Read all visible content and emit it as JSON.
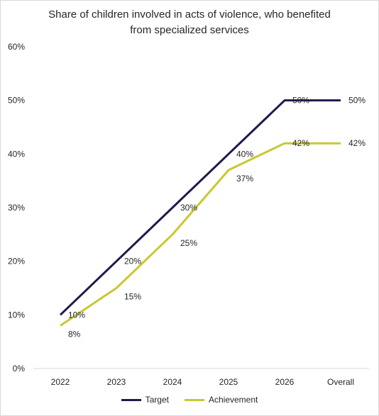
{
  "chart_data": {
    "type": "line",
    "title_lines": [
      "Share of children involved in acts of violence, who benefited",
      "from specialized services"
    ],
    "categories": [
      "2022",
      "2023",
      "2024",
      "2025",
      "2026",
      "Overall"
    ],
    "yticks": [
      "0%",
      "10%",
      "20%",
      "30%",
      "40%",
      "50%",
      "60%"
    ],
    "ylim": [
      0,
      60
    ],
    "grid": false,
    "legend_position": "bottom",
    "series": [
      {
        "name": "Target",
        "color": "#1f1a4d",
        "values": [
          10,
          20,
          30,
          40,
          50,
          50
        ],
        "labels": [
          "10%",
          "20%",
          "30%",
          "40%",
          "50%",
          "50%"
        ]
      },
      {
        "name": "Achievement",
        "color": "#c8c832",
        "values": [
          8,
          15,
          25,
          37,
          42,
          42
        ],
        "labels": [
          "8%",
          "15%",
          "25%",
          "37%",
          "42%",
          "42%"
        ]
      }
    ]
  }
}
